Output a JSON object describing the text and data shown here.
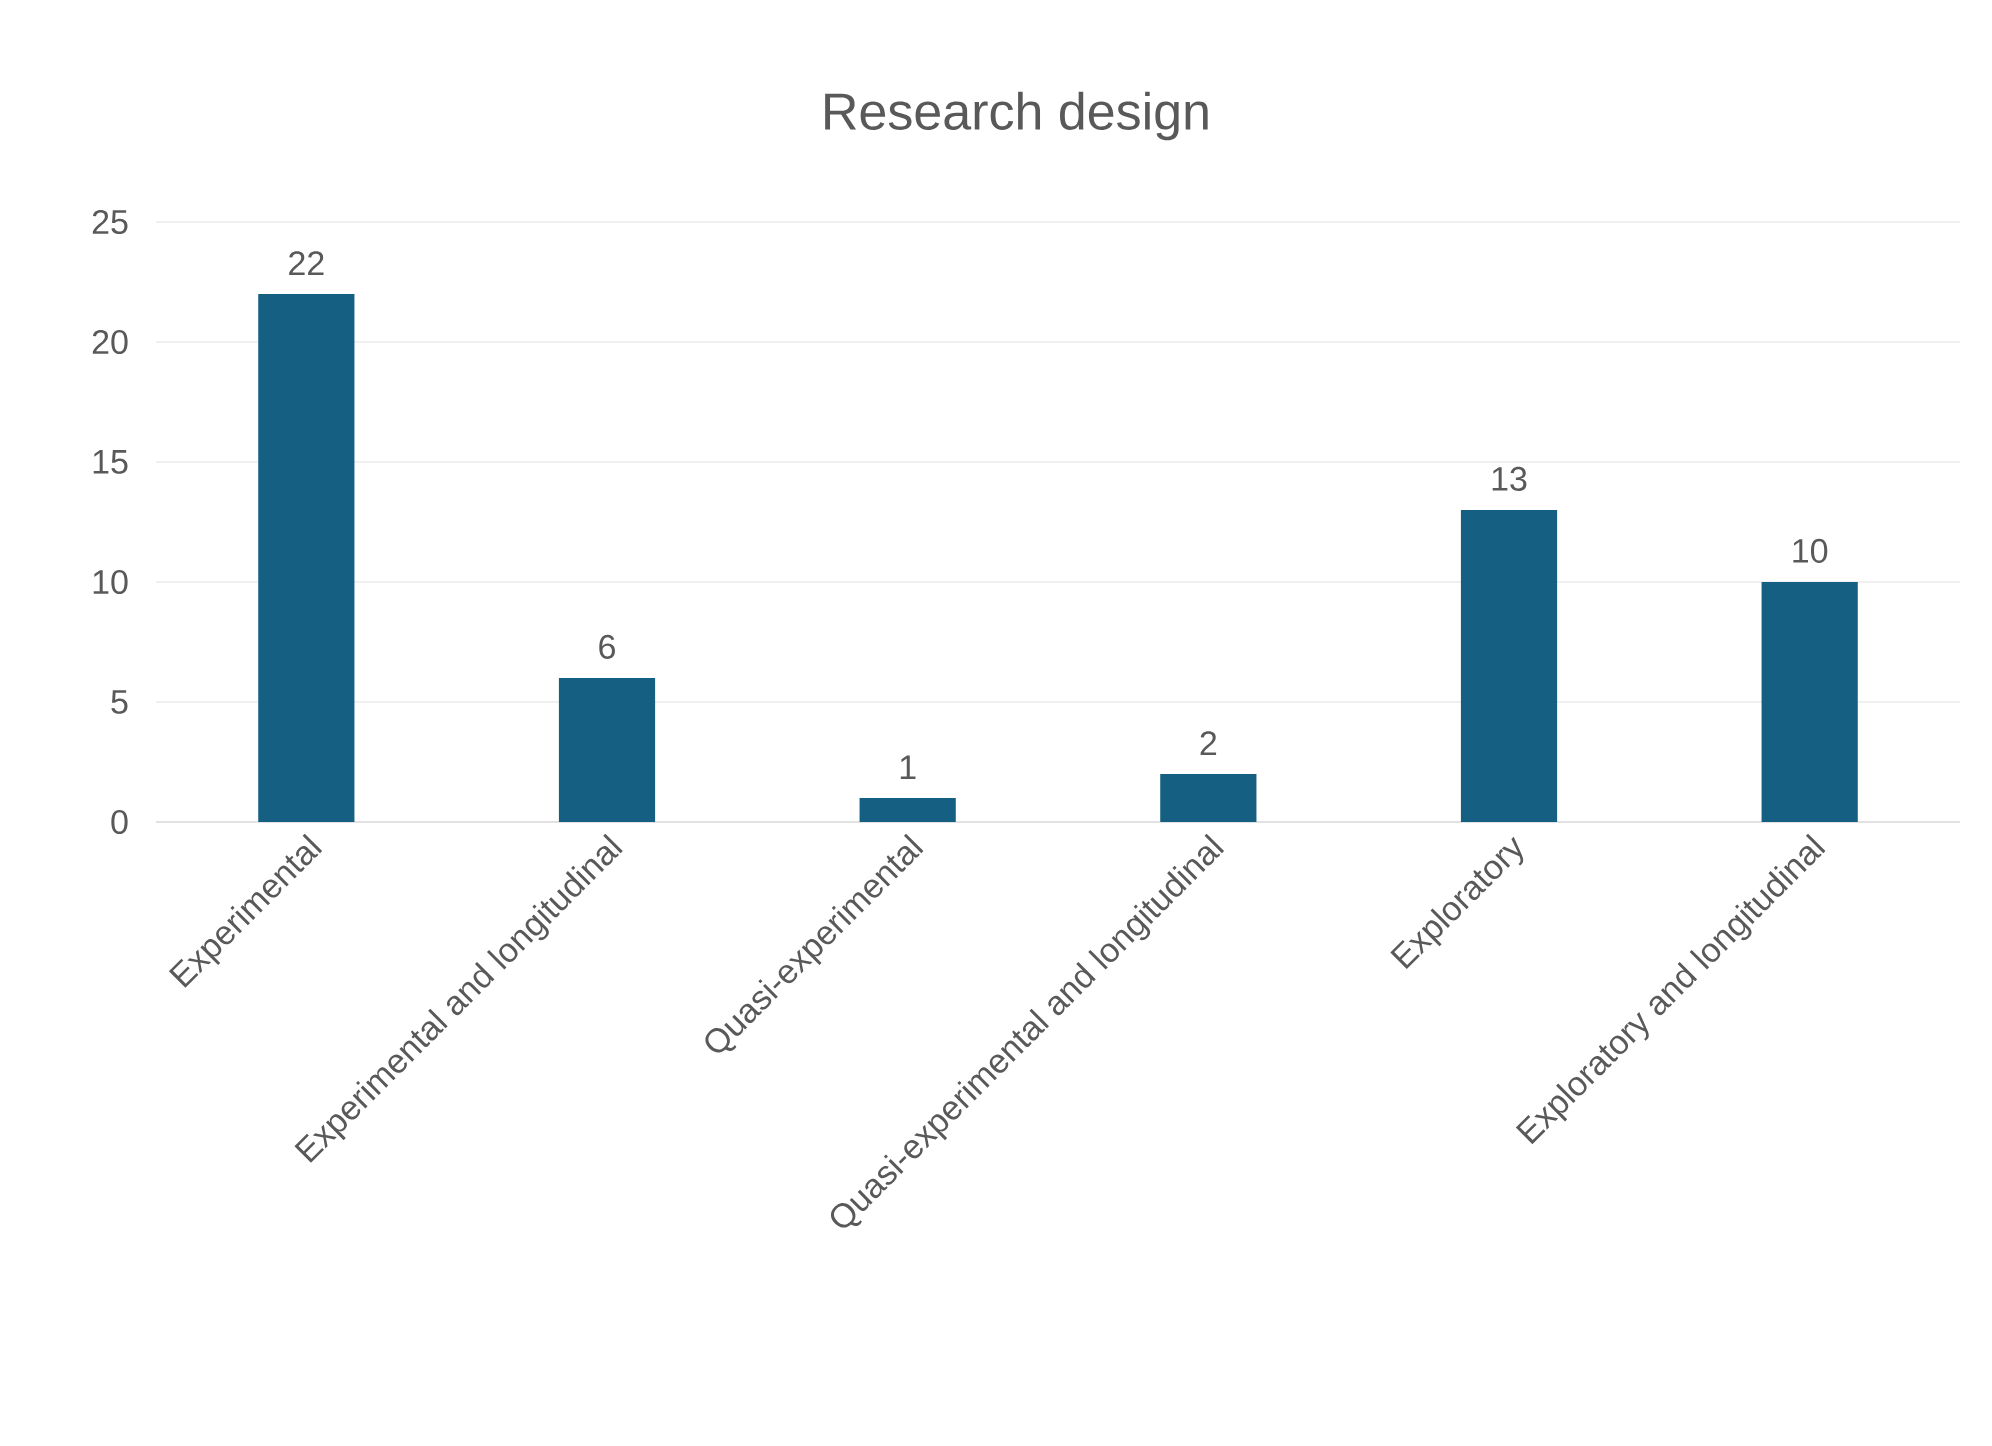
{
  "chart_data": {
    "type": "bar",
    "title": "Research design",
    "categories": [
      "Experimental",
      "Experimental and longitudinal",
      "Quasi-experimental",
      "Quasi-experimental and longitudinal",
      "Exploratory",
      "Exploratory and longitudinal"
    ],
    "values": [
      22,
      6,
      1,
      2,
      13,
      10
    ],
    "color": "#156082",
    "ylim": [
      0,
      25
    ],
    "yticks": [
      0,
      5,
      10,
      15,
      20,
      25
    ],
    "grid": "y",
    "data_labels": true
  }
}
